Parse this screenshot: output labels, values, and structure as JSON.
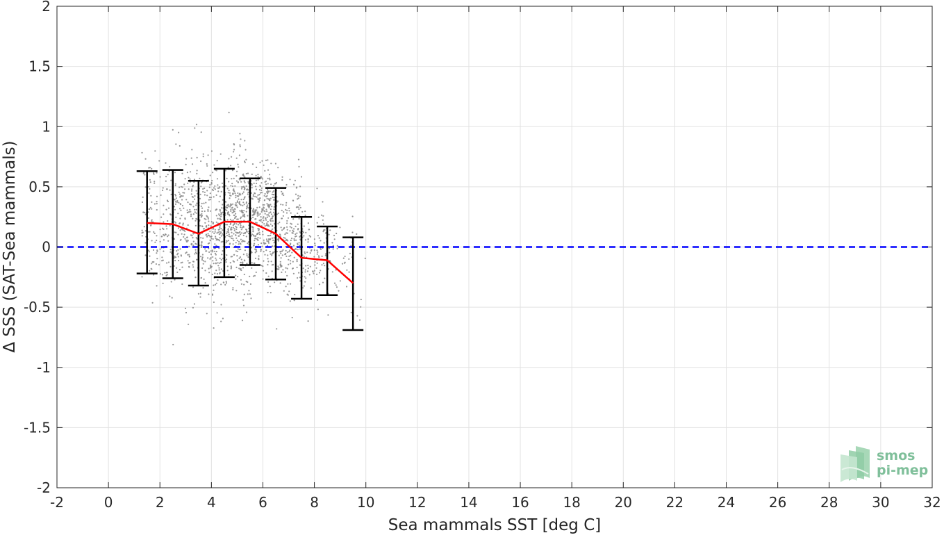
{
  "chart_data": {
    "type": "scatter",
    "xlabel": "Sea mammals SST [deg C]",
    "ylabel": "Δ SSS (SAT-Sea mammals)",
    "xlim": [
      -2,
      32
    ],
    "ylim": [
      -2,
      2
    ],
    "xticks": [
      -2,
      0,
      2,
      4,
      6,
      8,
      10,
      12,
      14,
      16,
      18,
      20,
      22,
      24,
      26,
      28,
      30,
      32
    ],
    "yticks": [
      -2,
      -1.5,
      -1,
      -0.5,
      0,
      0.5,
      1,
      1.5,
      2
    ],
    "xtick_labels": [
      "-2",
      "0",
      "2",
      "4",
      "6",
      "8",
      "10",
      "12",
      "14",
      "16",
      "18",
      "20",
      "22",
      "24",
      "26",
      "28",
      "30",
      "32"
    ],
    "ytick_labels": [
      "-2",
      "-1.5",
      "-1",
      "-0.5",
      "0",
      "0.5",
      "1",
      "1.5",
      "2"
    ],
    "grid": true,
    "reference_line": {
      "y": 0,
      "color": "#0000ff",
      "style": "dashed"
    },
    "scatter_color": "#8c8c8c",
    "scatter_clusters": [
      {
        "x_min": 1.3,
        "x_max": 2.5,
        "y_mean": 0.2,
        "y_std": 0.22,
        "count": 160
      },
      {
        "x_min": 2.5,
        "x_max": 3.5,
        "y_mean": 0.19,
        "y_std": 0.23,
        "count": 220
      },
      {
        "x_min": 3.5,
        "x_max": 4.5,
        "y_mean": 0.11,
        "y_std": 0.22,
        "count": 300
      },
      {
        "x_min": 4.5,
        "x_max": 5.5,
        "y_mean": 0.21,
        "y_std": 0.23,
        "count": 400
      },
      {
        "x_min": 5.5,
        "x_max": 6.5,
        "y_mean": 0.21,
        "y_std": 0.18,
        "count": 360
      },
      {
        "x_min": 6.5,
        "x_max": 7.5,
        "y_mean": 0.11,
        "y_std": 0.19,
        "count": 220
      },
      {
        "x_min": 7.5,
        "x_max": 8.5,
        "y_mean": -0.09,
        "y_std": 0.17,
        "count": 110
      },
      {
        "x_min": 8.5,
        "x_max": 9.5,
        "y_mean": -0.11,
        "y_std": 0.15,
        "count": 50
      },
      {
        "x_min": 9.5,
        "x_max": 10.0,
        "y_mean": -0.3,
        "y_std": 0.2,
        "count": 8
      }
    ],
    "series": [
      {
        "name": "",
        "type": "line",
        "color": "#ff0000",
        "x": [
          1.5,
          2.5,
          3.5,
          4.5,
          5.5,
          6.5,
          7.5,
          8.5,
          9.5
        ],
        "y": [
          0.2,
          0.19,
          0.11,
          0.21,
          0.21,
          0.11,
          -0.09,
          -0.11,
          -0.3
        ]
      }
    ],
    "error_bars": {
      "color": "#000000",
      "x": [
        1.5,
        2.5,
        3.5,
        4.5,
        5.5,
        6.5,
        7.5,
        8.5,
        9.5
      ],
      "upper": [
        0.63,
        0.64,
        0.55,
        0.65,
        0.57,
        0.49,
        0.25,
        0.17,
        0.08
      ],
      "lower": [
        -0.22,
        -0.26,
        -0.32,
        -0.25,
        -0.15,
        -0.27,
        -0.43,
        -0.4,
        -0.69
      ]
    }
  },
  "logo": {
    "line1": "smos",
    "line2": "pi-mep"
  }
}
